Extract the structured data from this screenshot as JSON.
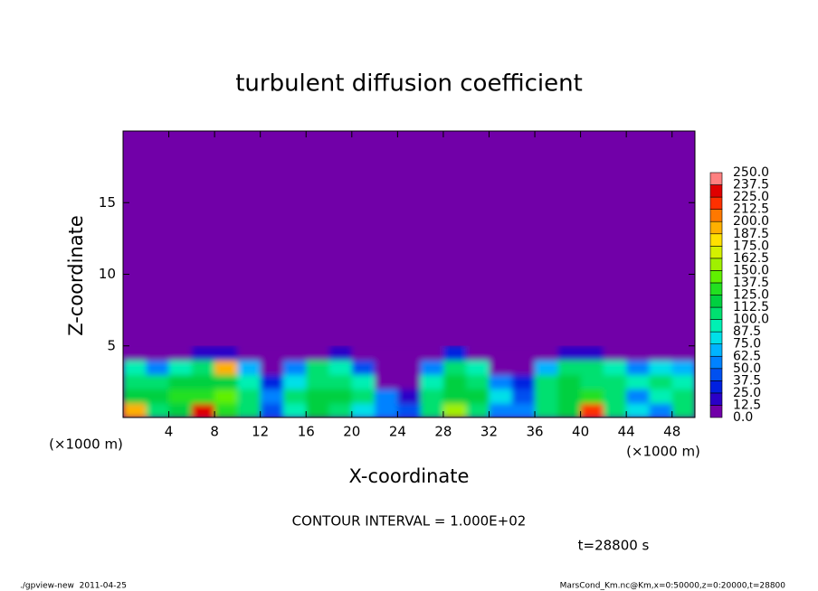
{
  "chart_data": {
    "type": "contour",
    "title": "turbulent diffusion coefficient",
    "xlabel": "X-coordinate",
    "ylabel": "Z-coordinate",
    "x_unit": "(×1000 m)",
    "xlim": [
      0,
      50
    ],
    "ylim": [
      0,
      20
    ],
    "xticks": [
      4,
      8,
      12,
      16,
      20,
      24,
      28,
      32,
      36,
      40,
      44,
      48
    ],
    "yticks": [
      5,
      10,
      15
    ],
    "grid": false,
    "x": [
      1,
      3,
      5,
      7,
      9,
      11,
      13,
      15,
      17,
      19,
      21,
      23,
      25,
      27,
      29,
      31,
      33,
      35,
      37,
      39,
      41,
      43,
      45,
      47,
      49
    ],
    "z": [
      0.5,
      1.5,
      2.5,
      3.5,
      4.5
    ],
    "values": [
      [
        190,
        120,
        110,
        90,
        5
      ],
      [
        110,
        115,
        105,
        60,
        5
      ],
      [
        120,
        130,
        115,
        95,
        10
      ],
      [
        230,
        125,
        120,
        110,
        20
      ],
      [
        130,
        140,
        120,
        190,
        15
      ],
      [
        110,
        100,
        90,
        70,
        5
      ],
      [
        40,
        60,
        30,
        5,
        0
      ],
      [
        90,
        110,
        80,
        60,
        5
      ],
      [
        120,
        115,
        110,
        100,
        10
      ],
      [
        110,
        120,
        105,
        90,
        15
      ],
      [
        80,
        100,
        90,
        40,
        5
      ],
      [
        50,
        60,
        10,
        0,
        0
      ],
      [
        40,
        20,
        5,
        0,
        0
      ],
      [
        100,
        110,
        90,
        60,
        5
      ],
      [
        150,
        120,
        115,
        105,
        30
      ],
      [
        110,
        115,
        105,
        90,
        10
      ],
      [
        60,
        80,
        50,
        5,
        0
      ],
      [
        50,
        40,
        30,
        5,
        0
      ],
      [
        110,
        110,
        100,
        70,
        5
      ],
      [
        115,
        120,
        115,
        100,
        20
      ],
      [
        220,
        125,
        110,
        100,
        15
      ],
      [
        110,
        105,
        110,
        90,
        10
      ],
      [
        80,
        60,
        90,
        60,
        5
      ],
      [
        50,
        90,
        110,
        80,
        5
      ],
      [
        100,
        105,
        90,
        70,
        5
      ]
    ],
    "levels": [
      {
        "value": 0,
        "label": "0.0"
      },
      12.5,
      {
        "value": 25,
        "label": "25.0"
      },
      37.5,
      {
        "value": 50,
        "label": "50.0"
      },
      62.5,
      {
        "value": 75,
        "label": "75.0"
      },
      87.5,
      {
        "value": 100,
        "label": "100.0"
      },
      112.5,
      {
        "value": 125,
        "label": "125.0"
      },
      137.5,
      {
        "value": 150,
        "label": "150.0"
      },
      162.5,
      {
        "value": 175,
        "label": "175.0"
      },
      187.5,
      {
        "value": 200,
        "label": "200.0"
      },
      212.5,
      {
        "value": 225,
        "label": "225.0"
      },
      237.5,
      {
        "value": 250,
        "label": "250.0"
      }
    ],
    "colors": [
      "#7100a8",
      "#2a00c8",
      "#0020e0",
      "#0050f0",
      "#0082ff",
      "#00b4ff",
      "#00e0e8",
      "#00f0b4",
      "#00e070",
      "#00d040",
      "#22e020",
      "#60f000",
      "#a0f000",
      "#d4f000",
      "#ffe000",
      "#ffb000",
      "#ff7800",
      "#ff3000",
      "#e00000",
      "#ff8080"
    ],
    "annotation": "CONTOUR INTERVAL = 1.000E+02",
    "time_label": "t=28800 s",
    "footer_left": "./gpview-new  2011-04-25",
    "footer_right": "MarsCond_Km.nc@Km,x=0:50000,z=0:20000,t=28800"
  }
}
